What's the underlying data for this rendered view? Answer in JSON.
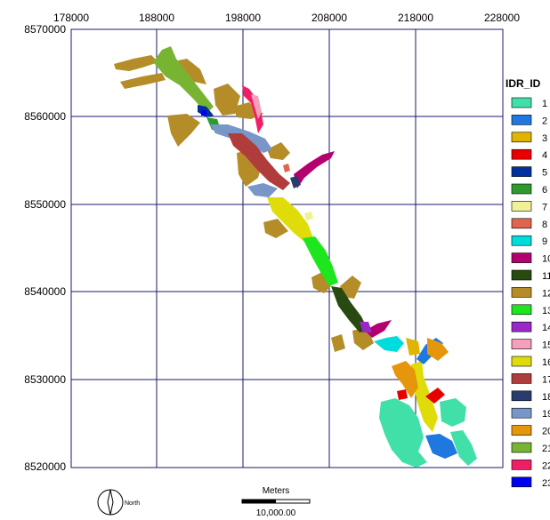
{
  "map": {
    "x_ticks": [
      "178000",
      "188000",
      "198000",
      "208000",
      "218000",
      "228000"
    ],
    "y_ticks": [
      "8570000",
      "8560000",
      "8550000",
      "8540000",
      "8530000",
      "8520000"
    ],
    "legend": {
      "title": "IDR_ID",
      "items": [
        {
          "label": "1",
          "color": "#40e0a8"
        },
        {
          "label": "2",
          "color": "#1e78e0"
        },
        {
          "label": "3",
          "color": "#e0b400"
        },
        {
          "label": "4",
          "color": "#e80000"
        },
        {
          "label": "5",
          "color": "#0030a0"
        },
        {
          "label": "6",
          "color": "#2e9a2e"
        },
        {
          "label": "7",
          "color": "#f0f096"
        },
        {
          "label": "8",
          "color": "#e06450"
        },
        {
          "label": "9",
          "color": "#00dcdc"
        },
        {
          "label": "10",
          "color": "#b4006e"
        },
        {
          "label": "11",
          "color": "#284a10"
        },
        {
          "label": "12",
          "color": "#b48c28"
        },
        {
          "label": "13",
          "color": "#1ee61e"
        },
        {
          "label": "14",
          "color": "#9a28c8"
        },
        {
          "label": "15",
          "color": "#f4a0bc"
        },
        {
          "label": "16",
          "color": "#e0dc0a"
        },
        {
          "label": "17",
          "color": "#b03c3c"
        },
        {
          "label": "18",
          "color": "#283c6e"
        },
        {
          "label": "19",
          "color": "#7896c8"
        },
        {
          "label": "20",
          "color": "#e6960a"
        },
        {
          "label": "21",
          "color": "#78b432"
        },
        {
          "label": "22",
          "color": "#f01e64"
        },
        {
          "label": "23",
          "color": "#0000f0"
        }
      ]
    },
    "north_label": "North",
    "scale_bar": {
      "title": "Meters",
      "value": "10,000.00"
    }
  }
}
